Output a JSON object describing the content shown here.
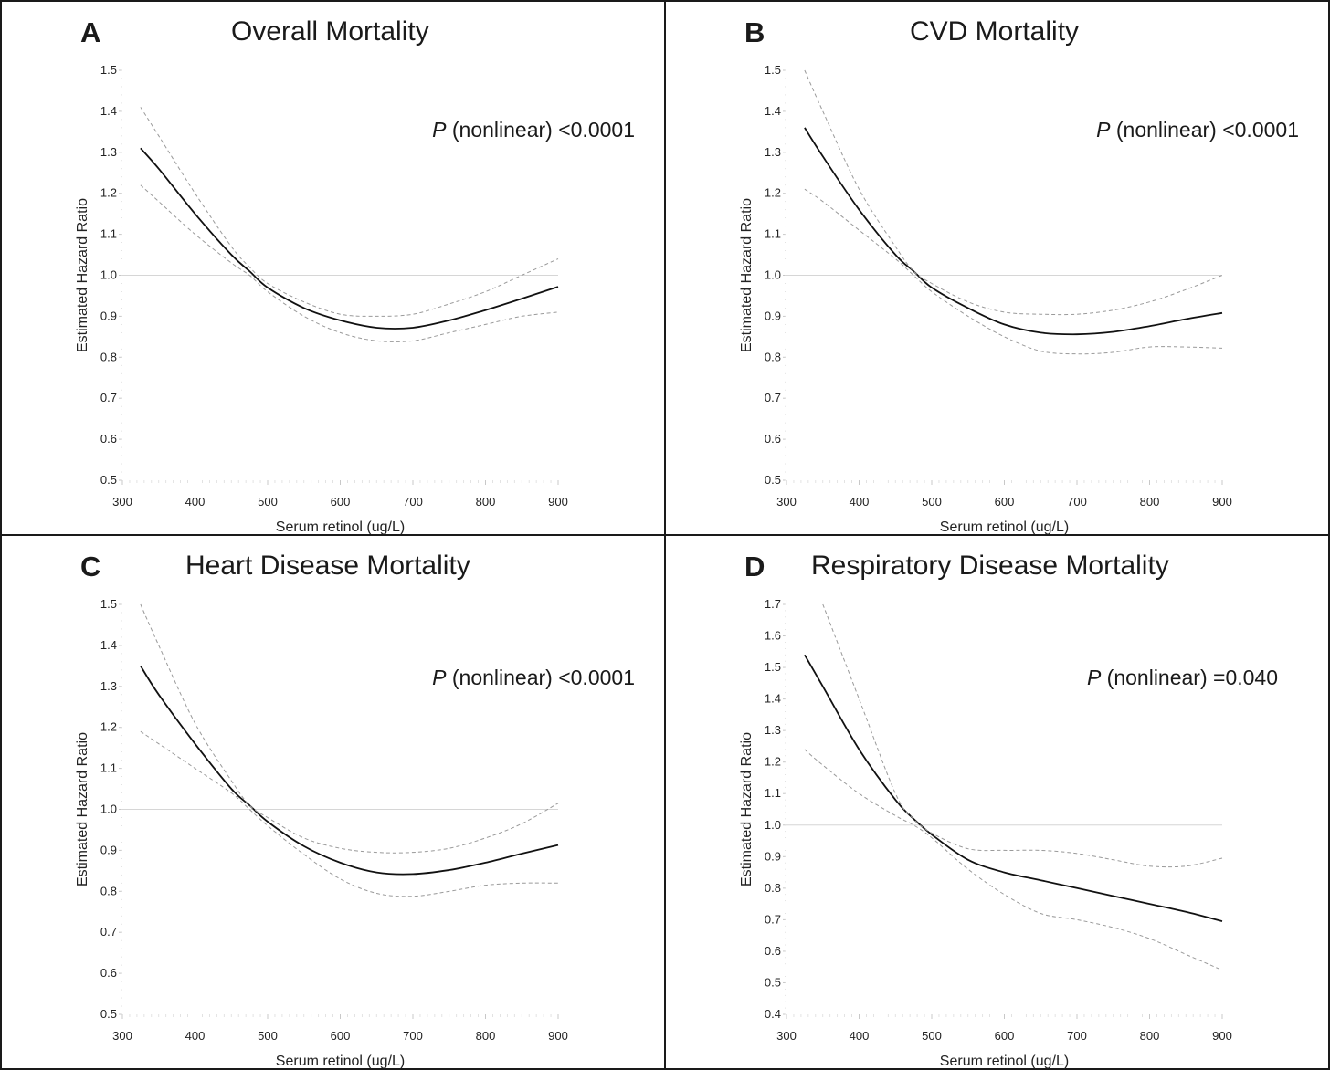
{
  "chart_data": [
    {
      "panel": "A",
      "type": "line",
      "title": "Overall Mortality",
      "annotation": {
        "p_symbol": "P",
        "text": "(nonlinear) <0.0001"
      },
      "xlabel": "Serum retinol (ug/L)",
      "ylabel": "Estimated Hazard Ratio",
      "xlim": [
        300,
        900
      ],
      "ylim": [
        0.5,
        1.5
      ],
      "xticks": [
        300,
        400,
        500,
        600,
        700,
        800,
        900
      ],
      "yticks": [
        0.5,
        0.6,
        0.7,
        0.8,
        0.9,
        1.0,
        1.1,
        1.2,
        1.3,
        1.4,
        1.5
      ],
      "reference_line": 1.0,
      "x": [
        325,
        350,
        400,
        450,
        475,
        500,
        550,
        600,
        650,
        700,
        750,
        800,
        850,
        900
      ],
      "series": [
        {
          "name": "Estimated Hazard Ratio",
          "style": "solid",
          "values": [
            1.31,
            1.26,
            1.15,
            1.05,
            1.01,
            0.97,
            0.92,
            0.89,
            0.872,
            0.872,
            0.89,
            0.915,
            0.943,
            0.972
          ]
        },
        {
          "name": "Upper 95% CI",
          "style": "dashed",
          "values": [
            1.41,
            1.34,
            1.2,
            1.07,
            1.02,
            0.98,
            0.935,
            0.905,
            0.9,
            0.905,
            0.93,
            0.96,
            1.0,
            1.04
          ]
        },
        {
          "name": "Lower 95% CI",
          "style": "dashed",
          "values": [
            1.22,
            1.18,
            1.1,
            1.03,
            1.0,
            0.96,
            0.9,
            0.86,
            0.84,
            0.84,
            0.86,
            0.88,
            0.9,
            0.91
          ]
        }
      ]
    },
    {
      "panel": "B",
      "type": "line",
      "title": "CVD Mortality",
      "annotation": {
        "p_symbol": "P",
        "text": "(nonlinear) <0.0001"
      },
      "xlabel": "Serum retinol (ug/L)",
      "ylabel": "Estimated Hazard Ratio",
      "xlim": [
        300,
        900
      ],
      "ylim": [
        0.5,
        1.5
      ],
      "xticks": [
        300,
        400,
        500,
        600,
        700,
        800,
        900
      ],
      "yticks": [
        0.5,
        0.6,
        0.7,
        0.8,
        0.9,
        1.0,
        1.1,
        1.2,
        1.3,
        1.4,
        1.5
      ],
      "reference_line": 1.0,
      "x": [
        325,
        350,
        400,
        450,
        475,
        500,
        550,
        600,
        650,
        700,
        750,
        800,
        850,
        900
      ],
      "series": [
        {
          "name": "Estimated Hazard Ratio",
          "style": "solid",
          "values": [
            1.36,
            1.29,
            1.16,
            1.05,
            1.01,
            0.97,
            0.92,
            0.88,
            0.86,
            0.856,
            0.862,
            0.876,
            0.893,
            0.908
          ]
        },
        {
          "name": "Upper 95% CI",
          "style": "dashed",
          "values": [
            1.5,
            1.4,
            1.21,
            1.07,
            1.01,
            0.98,
            0.935,
            0.91,
            0.905,
            0.905,
            0.915,
            0.935,
            0.965,
            1.0
          ]
        },
        {
          "name": "Lower 95% CI",
          "style": "dashed",
          "values": [
            1.21,
            1.18,
            1.11,
            1.04,
            1.0,
            0.96,
            0.9,
            0.85,
            0.815,
            0.808,
            0.812,
            0.825,
            0.825,
            0.822
          ]
        }
      ]
    },
    {
      "panel": "C",
      "type": "line",
      "title": "Heart Disease Mortality",
      "annotation": {
        "p_symbol": "P",
        "text": "(nonlinear) <0.0001"
      },
      "xlabel": "Serum retinol (ug/L)",
      "ylabel": "Estimated Hazard Ratio",
      "xlim": [
        300,
        900
      ],
      "ylim": [
        0.5,
        1.5
      ],
      "xticks": [
        300,
        400,
        500,
        600,
        700,
        800,
        900
      ],
      "yticks": [
        0.5,
        0.6,
        0.7,
        0.8,
        0.9,
        1.0,
        1.1,
        1.2,
        1.3,
        1.4,
        1.5
      ],
      "reference_line": 1.0,
      "x": [
        325,
        350,
        400,
        450,
        475,
        500,
        550,
        600,
        650,
        700,
        750,
        800,
        850,
        900
      ],
      "series": [
        {
          "name": "Estimated Hazard Ratio",
          "style": "solid",
          "values": [
            1.35,
            1.28,
            1.16,
            1.05,
            1.01,
            0.97,
            0.91,
            0.87,
            0.846,
            0.842,
            0.852,
            0.87,
            0.892,
            0.913
          ]
        },
        {
          "name": "Upper 95% CI",
          "style": "dashed",
          "values": [
            1.5,
            1.4,
            1.21,
            1.07,
            1.01,
            0.98,
            0.93,
            0.905,
            0.895,
            0.895,
            0.905,
            0.93,
            0.965,
            1.015
          ]
        },
        {
          "name": "Lower 95% CI",
          "style": "dashed",
          "values": [
            1.19,
            1.16,
            1.1,
            1.04,
            1.0,
            0.96,
            0.89,
            0.83,
            0.795,
            0.788,
            0.8,
            0.815,
            0.82,
            0.82
          ]
        }
      ]
    },
    {
      "panel": "D",
      "type": "line",
      "title": "Respiratory Disease Mortality",
      "annotation": {
        "p_symbol": "P",
        "text": "(nonlinear) =0.040"
      },
      "xlabel": "Serum retinol (ug/L)",
      "ylabel": "Estimated Hazard Ratio",
      "xlim": [
        300,
        900
      ],
      "ylim": [
        0.4,
        1.7
      ],
      "xticks": [
        300,
        400,
        500,
        600,
        700,
        800,
        900
      ],
      "yticks": [
        0.4,
        0.5,
        0.6,
        0.7,
        0.8,
        0.9,
        1.0,
        1.1,
        1.2,
        1.3,
        1.4,
        1.5,
        1.6,
        1.7
      ],
      "reference_line": 1.0,
      "x": [
        325,
        350,
        400,
        450,
        475,
        500,
        550,
        600,
        650,
        700,
        750,
        800,
        850,
        900
      ],
      "series": [
        {
          "name": "Estimated Hazard Ratio",
          "style": "solid",
          "values": [
            1.54,
            1.44,
            1.24,
            1.08,
            1.02,
            0.97,
            0.89,
            0.85,
            0.825,
            0.8,
            0.775,
            0.75,
            0.725,
            0.695
          ]
        },
        {
          "name": "Upper 95% CI",
          "style": "dashed",
          "values": [
            null,
            1.7,
            1.4,
            1.1,
            1.02,
            0.975,
            0.925,
            0.92,
            0.92,
            0.91,
            0.89,
            0.87,
            0.87,
            0.895
          ]
        },
        {
          "name": "Lower 95% CI",
          "style": "dashed",
          "values": [
            1.24,
            1.19,
            1.1,
            1.03,
            1.0,
            0.96,
            0.86,
            0.78,
            0.72,
            0.7,
            0.675,
            0.64,
            0.59,
            0.54
          ]
        }
      ]
    }
  ]
}
